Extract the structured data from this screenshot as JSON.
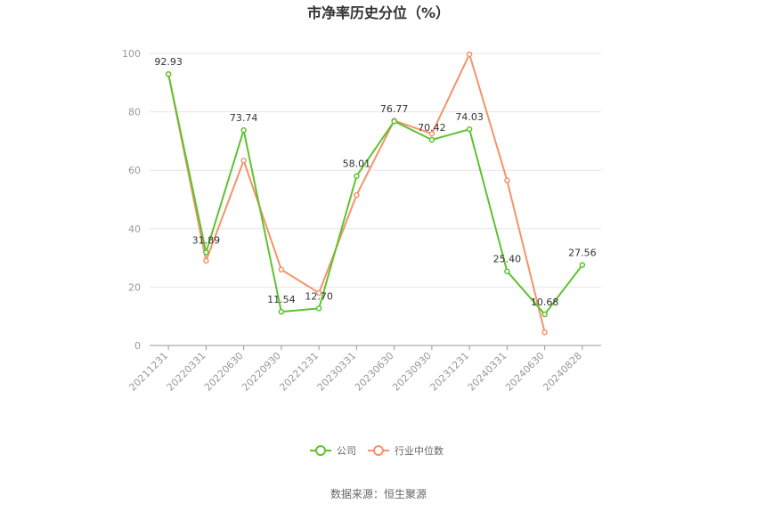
{
  "chart_data": {
    "type": "line",
    "title": "市净率历史分位（%）",
    "categories": [
      "20211231",
      "20220331",
      "20220630",
      "20220930",
      "20221231",
      "20230331",
      "20230630",
      "20230930",
      "20231231",
      "20240331",
      "20240630",
      "20240828"
    ],
    "ylim": [
      0,
      100
    ],
    "yticks": [
      "0",
      "20",
      "40",
      "60",
      "80",
      "100"
    ],
    "grid": true,
    "legend_position": "bottom",
    "series": [
      {
        "name": "公司",
        "color": "#5ec32e",
        "values": [
          92.93,
          31.89,
          73.74,
          11.54,
          12.7,
          58.01,
          76.77,
          70.42,
          74.03,
          25.4,
          10.68,
          27.56
        ],
        "labels": [
          "92.93",
          "31.89",
          "73.74",
          "11.54",
          "12.70",
          "58.01",
          "76.77",
          "70.42",
          "74.03",
          "25.40",
          "10.68",
          "27.56"
        ]
      },
      {
        "name": "行业中位数",
        "color": "#f5936b",
        "values": [
          92.9,
          29.0,
          63.3,
          26.0,
          18.0,
          51.5,
          77.0,
          72.5,
          99.7,
          56.5,
          4.5,
          null
        ]
      }
    ]
  },
  "source": "数据来源：恒生聚源"
}
